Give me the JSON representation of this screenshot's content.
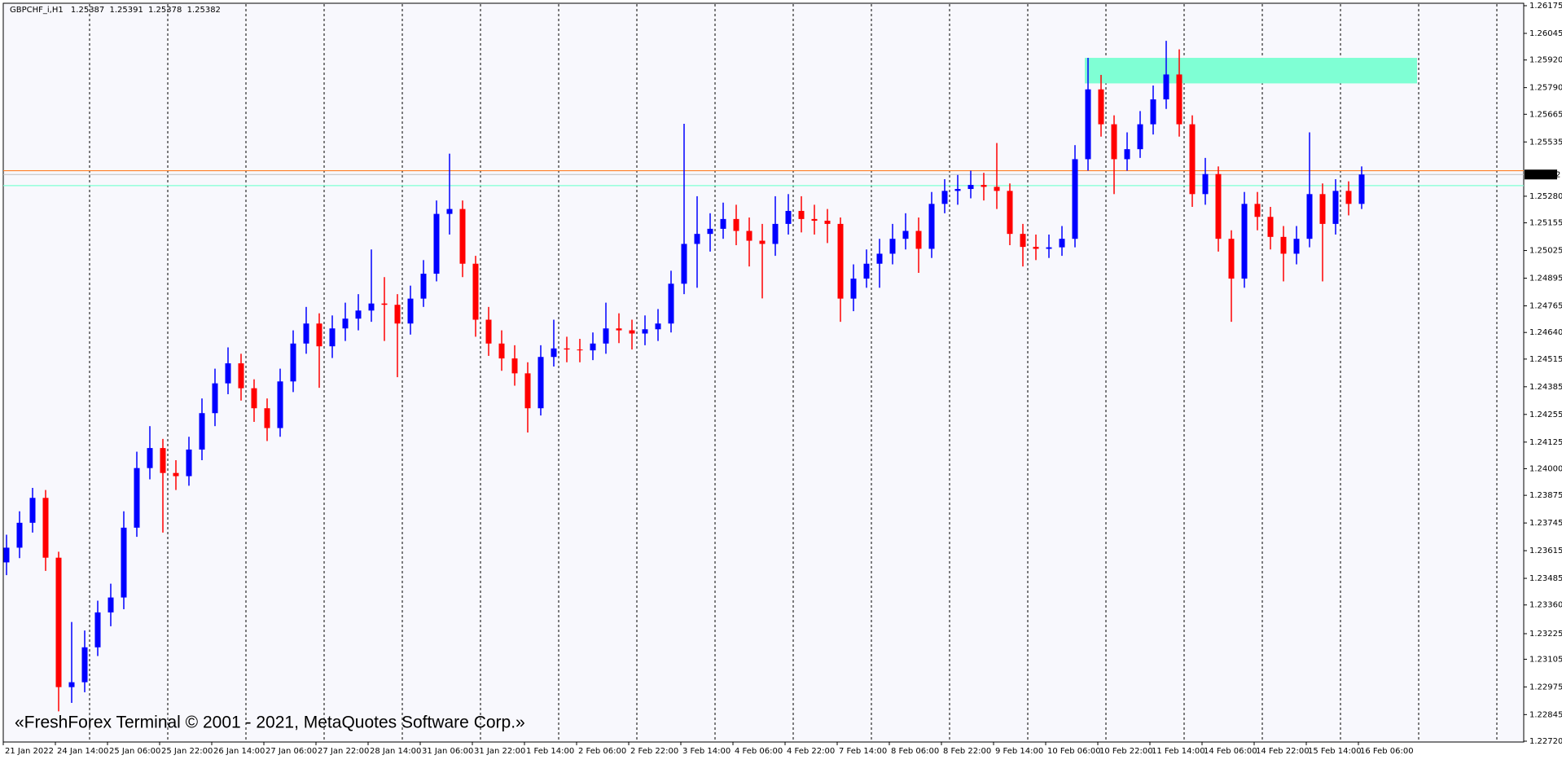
{
  "chart_data": {
    "type": "candlestick",
    "symbol": "GBPCHF_i,H1",
    "ohlc_header": [
      1.25387,
      1.25391,
      1.25378,
      1.25382
    ],
    "watermark": "«FreshForex Terminal © 2001 - 2021, MetaQuotes Software Corp.»",
    "last_price": 1.25382,
    "up_color": "#0000ff",
    "down_color": "#ff0000",
    "ylim": [
      1.2272,
      1.26175
    ],
    "yticks": [
      1.26175,
      1.26045,
      {
        "value": 1.2592,
        "label": "1.25920"
      },
      {
        "value": 1.2579,
        "label": "1.25790"
      },
      1.25665,
      1.25535,
      {
        "value": 1.2528,
        "label": "1.25280"
      },
      1.25155,
      1.25025,
      1.24895,
      1.24765,
      {
        "value": 1.2464,
        "label": "1.24640"
      },
      1.24515,
      1.24385,
      1.24255,
      1.24125,
      {
        "value": 1.24,
        "label": "1.24000"
      },
      1.23875,
      1.23745,
      1.23615,
      1.23485,
      {
        "value": 1.2336,
        "label": "1.23360"
      },
      1.23225,
      1.23105,
      1.22975,
      1.22845,
      {
        "value": 1.2272,
        "label": "1.22720"
      }
    ],
    "xticks": [
      "21 Jan 2022",
      "24 Jan 14:00",
      "25 Jan 06:00",
      "25 Jan 22:00",
      "26 Jan 14:00",
      "27 Jan 06:00",
      "27 Jan 22:00",
      "28 Jan 14:00",
      "31 Jan 06:00",
      "31 Jan 22:00",
      "1 Feb 14:00",
      "2 Feb 06:00",
      "2 Feb 22:00",
      "3 Feb 14:00",
      "4 Feb 06:00",
      "4 Feb 22:00",
      "7 Feb 14:00",
      "8 Feb 06:00",
      "8 Feb 22:00",
      "9 Feb 14:00",
      "10 Feb 06:00",
      "10 Feb 22:00",
      "11 Feb 14:00",
      "14 Feb 06:00",
      "14 Feb 22:00",
      "15 Feb 14:00",
      "16 Feb 06:00"
    ],
    "hlines": [
      {
        "value": 1.254,
        "color": "#ff7f27"
      },
      {
        "value": 1.2533,
        "color": "#7fffd4"
      }
    ],
    "zone": {
      "top": 1.2593,
      "bottom": 1.2581,
      "color": "#7fffd4"
    },
    "grid": true,
    "series": [
      {
        "ohlc": [
          [
            1.2356,
            1.2369,
            1.235,
            1.23629
          ],
          [
            1.23629,
            1.238,
            1.2358,
            1.23746
          ],
          [
            1.23746,
            1.2391,
            1.237,
            1.23863
          ],
          [
            1.23863,
            1.239,
            1.2352,
            1.23582
          ],
          [
            1.23582,
            1.2361,
            1.2286,
            1.22974
          ],
          [
            1.22974,
            1.2328,
            1.229,
            1.22997
          ],
          [
            1.22997,
            1.2324,
            1.2295,
            1.23161
          ],
          [
            1.23161,
            1.2338,
            1.2312,
            1.23325
          ],
          [
            1.23325,
            1.2346,
            1.2326,
            1.23395
          ],
          [
            1.23395,
            1.238,
            1.2334,
            1.23723
          ],
          [
            1.23723,
            1.2408,
            1.2368,
            1.24003
          ],
          [
            1.24003,
            1.242,
            1.2395,
            1.24097
          ],
          [
            1.24097,
            1.2414,
            1.237,
            1.2398
          ],
          [
            1.2398,
            1.2404,
            1.239,
            1.23965
          ],
          [
            1.23965,
            1.2415,
            1.2392,
            1.2409
          ],
          [
            1.2409,
            1.2433,
            1.2404,
            1.24261
          ],
          [
            1.24261,
            1.2447,
            1.242,
            1.24401
          ],
          [
            1.24401,
            1.2457,
            1.2435,
            1.24495
          ],
          [
            1.24495,
            1.2454,
            1.2432,
            1.24378
          ],
          [
            1.24378,
            1.2442,
            1.2422,
            1.24284
          ],
          [
            1.24284,
            1.2433,
            1.2413,
            1.24191
          ],
          [
            1.24191,
            1.2447,
            1.2415,
            1.2441
          ],
          [
            1.2441,
            1.2465,
            1.2436,
            1.24588
          ],
          [
            1.24588,
            1.2476,
            1.2454,
            1.24682
          ],
          [
            1.24682,
            1.2473,
            1.2438,
            1.24575
          ],
          [
            1.24575,
            1.2472,
            1.2452,
            1.24659
          ],
          [
            1.24659,
            1.2478,
            1.246,
            1.24705
          ],
          [
            1.24705,
            1.2482,
            1.2465,
            1.24743
          ],
          [
            1.24743,
            1.2503,
            1.2469,
            1.24776
          ],
          [
            1.24776,
            1.249,
            1.246,
            1.2477
          ],
          [
            1.2477,
            1.2482,
            1.2443,
            1.24682
          ],
          [
            1.24682,
            1.2486,
            1.2463,
            1.24799
          ],
          [
            1.24799,
            1.2498,
            1.2476,
            1.24916
          ],
          [
            1.24916,
            1.2526,
            1.2488,
            1.25197
          ],
          [
            1.25197,
            1.2548,
            1.251,
            1.2522
          ],
          [
            1.2522,
            1.2526,
            1.249,
            1.24963
          ],
          [
            1.24963,
            1.25,
            1.2462,
            1.247
          ],
          [
            1.247,
            1.2476,
            1.2453,
            1.24588
          ],
          [
            1.24588,
            1.2465,
            1.2446,
            1.24518
          ],
          [
            1.24518,
            1.2458,
            1.2439,
            1.24448
          ],
          [
            1.24448,
            1.245,
            1.2417,
            1.24284
          ],
          [
            1.24284,
            1.2458,
            1.2425,
            1.24525
          ],
          [
            1.24525,
            1.247,
            1.2448,
            1.24565
          ],
          [
            1.24565,
            1.2462,
            1.245,
            1.2456
          ],
          [
            1.2456,
            1.2461,
            1.245,
            1.24556
          ],
          [
            1.24556,
            1.2464,
            1.2451,
            1.24588
          ],
          [
            1.24588,
            1.2478,
            1.2454,
            1.24659
          ],
          [
            1.24659,
            1.2473,
            1.2459,
            1.2465
          ],
          [
            1.2465,
            1.247,
            1.2456,
            1.24635
          ],
          [
            1.24635,
            1.2472,
            1.2458,
            1.24655
          ],
          [
            1.24655,
            1.2475,
            1.246,
            1.24682
          ],
          [
            1.24682,
            1.2493,
            1.2464,
            1.24869
          ],
          [
            1.24869,
            1.2562,
            1.2482,
            1.25056
          ],
          [
            1.25056,
            1.2528,
            1.2485,
            1.25103
          ],
          [
            1.25103,
            1.252,
            1.2502,
            1.25127
          ],
          [
            1.25127,
            1.2525,
            1.2508,
            1.25173
          ],
          [
            1.25173,
            1.2524,
            1.2505,
            1.25117
          ],
          [
            1.25117,
            1.2518,
            1.2495,
            1.25071
          ],
          [
            1.25071,
            1.2515,
            1.248,
            1.25056
          ],
          [
            1.25056,
            1.2528,
            1.25,
            1.2515
          ],
          [
            1.2515,
            1.2529,
            1.251,
            1.25211
          ],
          [
            1.25211,
            1.2528,
            1.2511,
            1.25173
          ],
          [
            1.25173,
            1.2524,
            1.251,
            1.25165
          ],
          [
            1.25165,
            1.2522,
            1.2506,
            1.2515
          ],
          [
            1.2515,
            1.2518,
            1.2469,
            1.24799
          ],
          [
            1.24799,
            1.2496,
            1.2474,
            1.24893
          ],
          [
            1.24893,
            1.2503,
            1.2485,
            1.24963
          ],
          [
            1.24963,
            1.2508,
            1.2485,
            1.2501
          ],
          [
            1.2501,
            1.2515,
            1.2496,
            1.2508
          ],
          [
            1.2508,
            1.252,
            1.2503,
            1.25117
          ],
          [
            1.25117,
            1.2518,
            1.2492,
            1.25033
          ],
          [
            1.25033,
            1.253,
            1.2499,
            1.25244
          ],
          [
            1.25244,
            1.2536,
            1.252,
            1.25305
          ],
          [
            1.25305,
            1.2538,
            1.2524,
            1.25314
          ],
          [
            1.25314,
            1.254,
            1.2527,
            1.25333
          ],
          [
            1.25333,
            1.2539,
            1.2526,
            1.25324
          ],
          [
            1.25324,
            1.2553,
            1.2522,
            1.25305
          ],
          [
            1.25305,
            1.2534,
            1.2505,
            1.25103
          ],
          [
            1.25103,
            1.2515,
            1.2495,
            1.25042
          ],
          [
            1.25042,
            1.251,
            1.2498,
            1.25033
          ],
          [
            1.25033,
            1.251,
            1.2499,
            1.2504
          ],
          [
            1.2504,
            1.2514,
            1.25,
            1.2508
          ],
          [
            1.2508,
            1.2552,
            1.2504,
            1.25454
          ],
          [
            1.25454,
            1.2593,
            1.254,
            1.25782
          ],
          [
            1.25782,
            1.2585,
            1.2556,
            1.25618
          ],
          [
            1.25618,
            1.2566,
            1.2529,
            1.25454
          ],
          [
            1.25454,
            1.2558,
            1.254,
            1.25501
          ],
          [
            1.25501,
            1.2568,
            1.2546,
            1.25618
          ],
          [
            1.25618,
            1.258,
            1.2557,
            1.25735
          ],
          [
            1.25735,
            1.2601,
            1.2569,
            1.25852
          ],
          [
            1.25852,
            1.2597,
            1.2556,
            1.25618
          ],
          [
            1.25618,
            1.2566,
            1.2523,
            1.2529
          ],
          [
            1.2529,
            1.2546,
            1.2524,
            1.25384
          ],
          [
            1.25384,
            1.2542,
            1.2502,
            1.2508
          ],
          [
            1.2508,
            1.2512,
            1.2469,
            1.24893
          ],
          [
            1.24893,
            1.253,
            1.2485,
            1.25244
          ],
          [
            1.25244,
            1.253,
            1.2512,
            1.25183
          ],
          [
            1.25183,
            1.2523,
            1.2503,
            1.25089
          ],
          [
            1.25089,
            1.2514,
            1.2488,
            1.2501
          ],
          [
            1.2501,
            1.2514,
            1.2496,
            1.2508
          ],
          [
            1.2508,
            1.2558,
            1.2504,
            1.2529
          ],
          [
            1.2529,
            1.2534,
            1.2488,
            1.2515
          ],
          [
            1.2515,
            1.2536,
            1.251,
            1.25305
          ],
          [
            1.25305,
            1.2535,
            1.2519,
            1.25244
          ],
          [
            1.25244,
            1.2542,
            1.2522,
            1.25382
          ]
        ]
      }
    ]
  }
}
